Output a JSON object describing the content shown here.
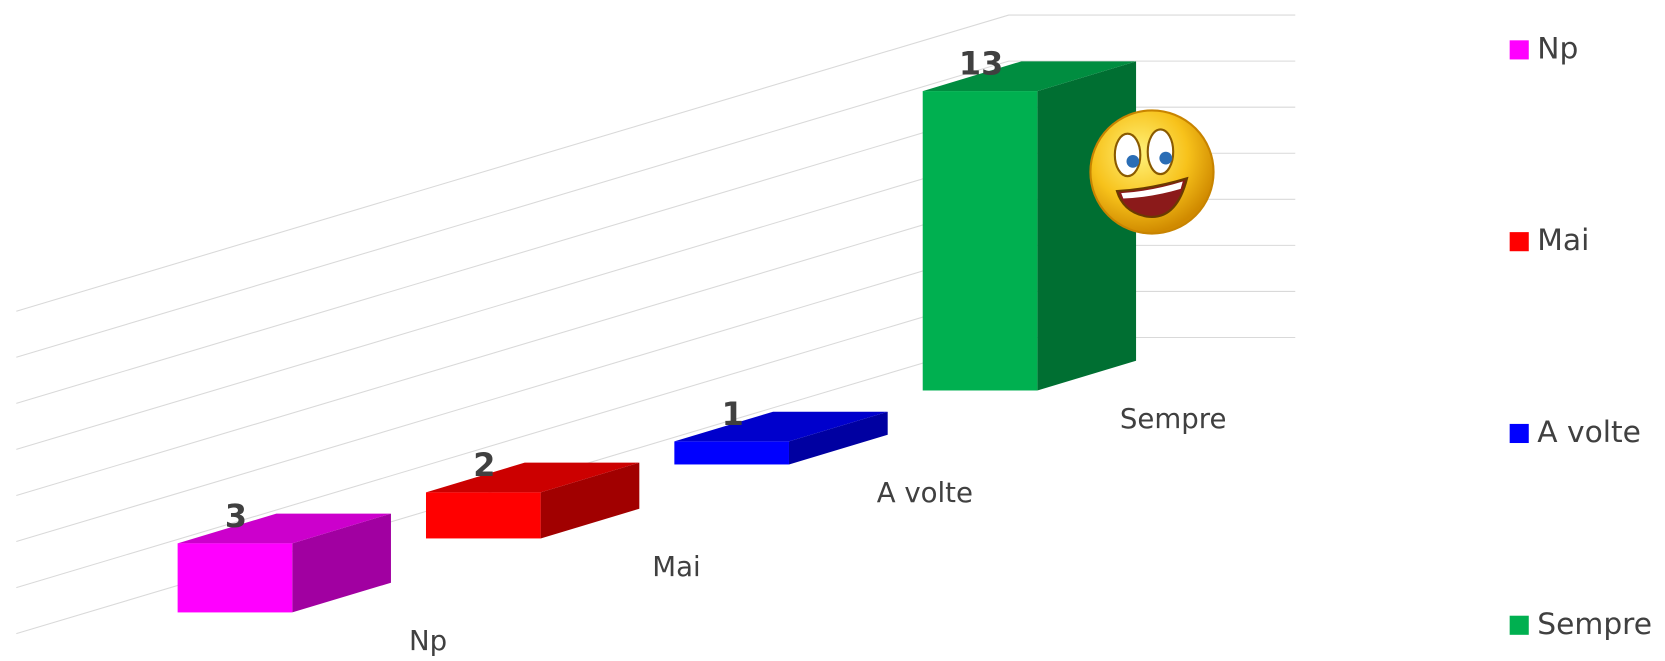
{
  "chart_data": {
    "type": "bar3d",
    "categories": [
      "Np",
      "Mai",
      "A volte",
      "Sempre"
    ],
    "values": [
      3,
      2,
      1,
      13
    ],
    "colors": [
      "#ff00ff",
      "#ff0000",
      "#0000ff",
      "#00b050"
    ],
    "ylim": [
      0,
      14
    ],
    "yticks": [
      0,
      2,
      4,
      6,
      8,
      10,
      12,
      14
    ],
    "grid": true,
    "legend": "right"
  }
}
